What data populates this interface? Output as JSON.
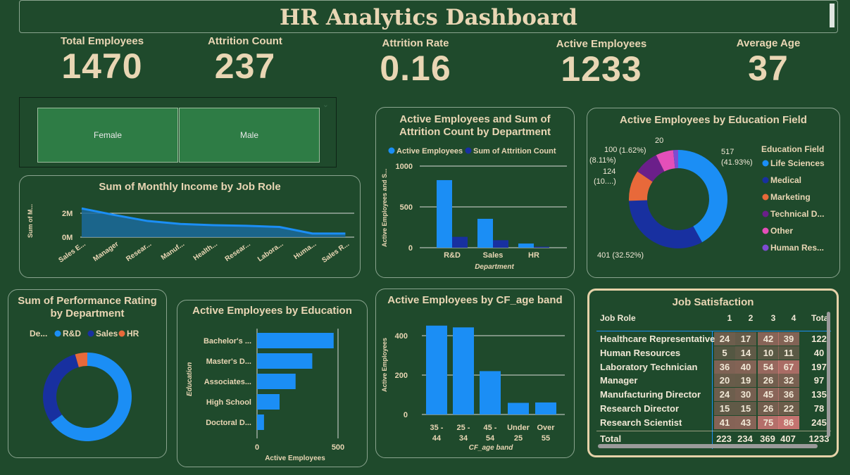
{
  "header": {
    "title": "HR Analytics Dashboard"
  },
  "kpis": [
    {
      "label": "Total Employees",
      "value": "1470"
    },
    {
      "label": "Attrition Count",
      "value": "237"
    },
    {
      "label": "Attrition Rate",
      "value": "0.16"
    },
    {
      "label": "Active Employees",
      "value": "1233"
    },
    {
      "label": "Average Age",
      "value": "37"
    }
  ],
  "slicer": {
    "options": [
      "Female",
      "Male"
    ],
    "chevron": "chevron-down-icon"
  },
  "colors": {
    "primary": "#1b8ef5",
    "secondary": "#1830a0",
    "tertiary": "#e8693a",
    "purple": "#6b1f8a",
    "pink": "#e44fb9",
    "violet": "#7e4bd1",
    "background": "#1f4a2c",
    "text": "#e9d6b4"
  },
  "income_chart": {
    "title": "Sum of Monthly Income by Job Role",
    "ylabel": "Sum of M...",
    "yticks": [
      "2M",
      "0M"
    ],
    "chart_data": {
      "type": "area",
      "categories": [
        "Sales E...",
        "Manager",
        "Resear...",
        "Manuf...",
        "Health...",
        "Resear...",
        "Labora...",
        "Huma...",
        "Sales R..."
      ],
      "values": [
        2.4,
        1.85,
        1.35,
        1.1,
        1.0,
        0.95,
        0.85,
        0.3,
        0.3
      ],
      "ylim": [
        0,
        3
      ]
    }
  },
  "dept_chart": {
    "title_line1": "Active Employees and Sum of",
    "title_line2": "Attrition Count by Department",
    "legend": [
      "Active Employees",
      "Sum of Attrition Count"
    ],
    "ylabel": "Active Employees and S...",
    "xlabel": "Department",
    "yticks": [
      "1000",
      "500",
      "0"
    ],
    "chart_data": {
      "type": "bar",
      "categories": [
        "R&D",
        "Sales",
        "HR"
      ],
      "series": [
        {
          "name": "Active Employees",
          "values": [
            828,
            354,
            51
          ]
        },
        {
          "name": "Sum of Attrition Count",
          "values": [
            133,
            92,
            12
          ]
        }
      ],
      "ylim": [
        0,
        1000
      ]
    }
  },
  "edu_field_chart": {
    "title": "Active Employees by Education Field",
    "legend_title": "Education Field",
    "legend": [
      "Life Sciences",
      "Medical",
      "Marketing",
      "Technical D...",
      "Other",
      "Human Res..."
    ],
    "labels": {
      "life_value": "517",
      "life_pct": "(41.93%)",
      "medical": "401 (32.52%)",
      "marketing_value": "124",
      "marketing_pct": "(10....)",
      "technical_value": "100",
      "technical_pct": "(8.11%)",
      "other_value": "20",
      "other_pct": "(1.62%)"
    },
    "chart_data": {
      "type": "pie",
      "categories": [
        "Life Sciences",
        "Medical",
        "Marketing",
        "Technical Degree",
        "Other",
        "Human Resources"
      ],
      "values": [
        517,
        401,
        124,
        100,
        71,
        20
      ]
    }
  },
  "perf_chart": {
    "title_line1": "Sum of Performance Rating",
    "title_line2": "by Department",
    "legend_title": "De...",
    "legend": [
      "R&D",
      "Sales",
      "HR"
    ],
    "chart_data": {
      "type": "pie",
      "categories": [
        "R&D",
        "Sales",
        "HR"
      ],
      "values": [
        2930,
        1360,
        200
      ]
    }
  },
  "education_chart": {
    "title": "Active Employees by Education",
    "ylabel": "Education",
    "xlabel": "Active Employees",
    "xticks": [
      "0",
      "500"
    ],
    "chart_data": {
      "type": "bar",
      "categories": [
        "Bachelor's ...",
        "Master's D...",
        "Associates...",
        "High School",
        "Doctoral D..."
      ],
      "values": [
        473,
        341,
        238,
        139,
        43
      ],
      "xlim": [
        0,
        500
      ]
    }
  },
  "age_chart": {
    "title": "Active Employees by CF_age band",
    "ylabel": "Active Employees",
    "xlabel": "CF_age band",
    "yticks": [
      "400",
      "200",
      "0"
    ],
    "chart_data": {
      "type": "bar",
      "categories": [
        [
          "35 -",
          "44"
        ],
        [
          "25 -",
          "34"
        ],
        [
          "45 -",
          "54"
        ],
        [
          "Under",
          "25"
        ],
        [
          "Over",
          "55"
        ]
      ],
      "values": [
        451,
        442,
        220,
        59,
        61
      ],
      "ylim": [
        0,
        480
      ]
    }
  },
  "job_table": {
    "title": "Job Satisfaction",
    "headers": [
      "Job Role",
      "1",
      "2",
      "3",
      "4",
      "Tota"
    ],
    "rows": [
      {
        "role": "Healthcare Representative",
        "v": [
          "24",
          "17",
          "42",
          "39"
        ],
        "total": "122"
      },
      {
        "role": "Human Resources",
        "v": [
          "5",
          "14",
          "10",
          "11"
        ],
        "total": "40"
      },
      {
        "role": "Laboratory Technician",
        "v": [
          "36",
          "40",
          "54",
          "67"
        ],
        "total": "197"
      },
      {
        "role": "Manager",
        "v": [
          "20",
          "19",
          "26",
          "32"
        ],
        "total": "97"
      },
      {
        "role": "Manufacturing Director",
        "v": [
          "24",
          "30",
          "45",
          "36"
        ],
        "total": "135"
      },
      {
        "role": "Research Director",
        "v": [
          "15",
          "15",
          "26",
          "22"
        ],
        "total": "78"
      },
      {
        "role": "Research Scientist",
        "v": [
          "41",
          "43",
          "75",
          "86"
        ],
        "total": "245"
      }
    ],
    "total_row": {
      "label": "Total",
      "v": [
        "223",
        "234",
        "369",
        "407"
      ],
      "total": "1233"
    }
  }
}
